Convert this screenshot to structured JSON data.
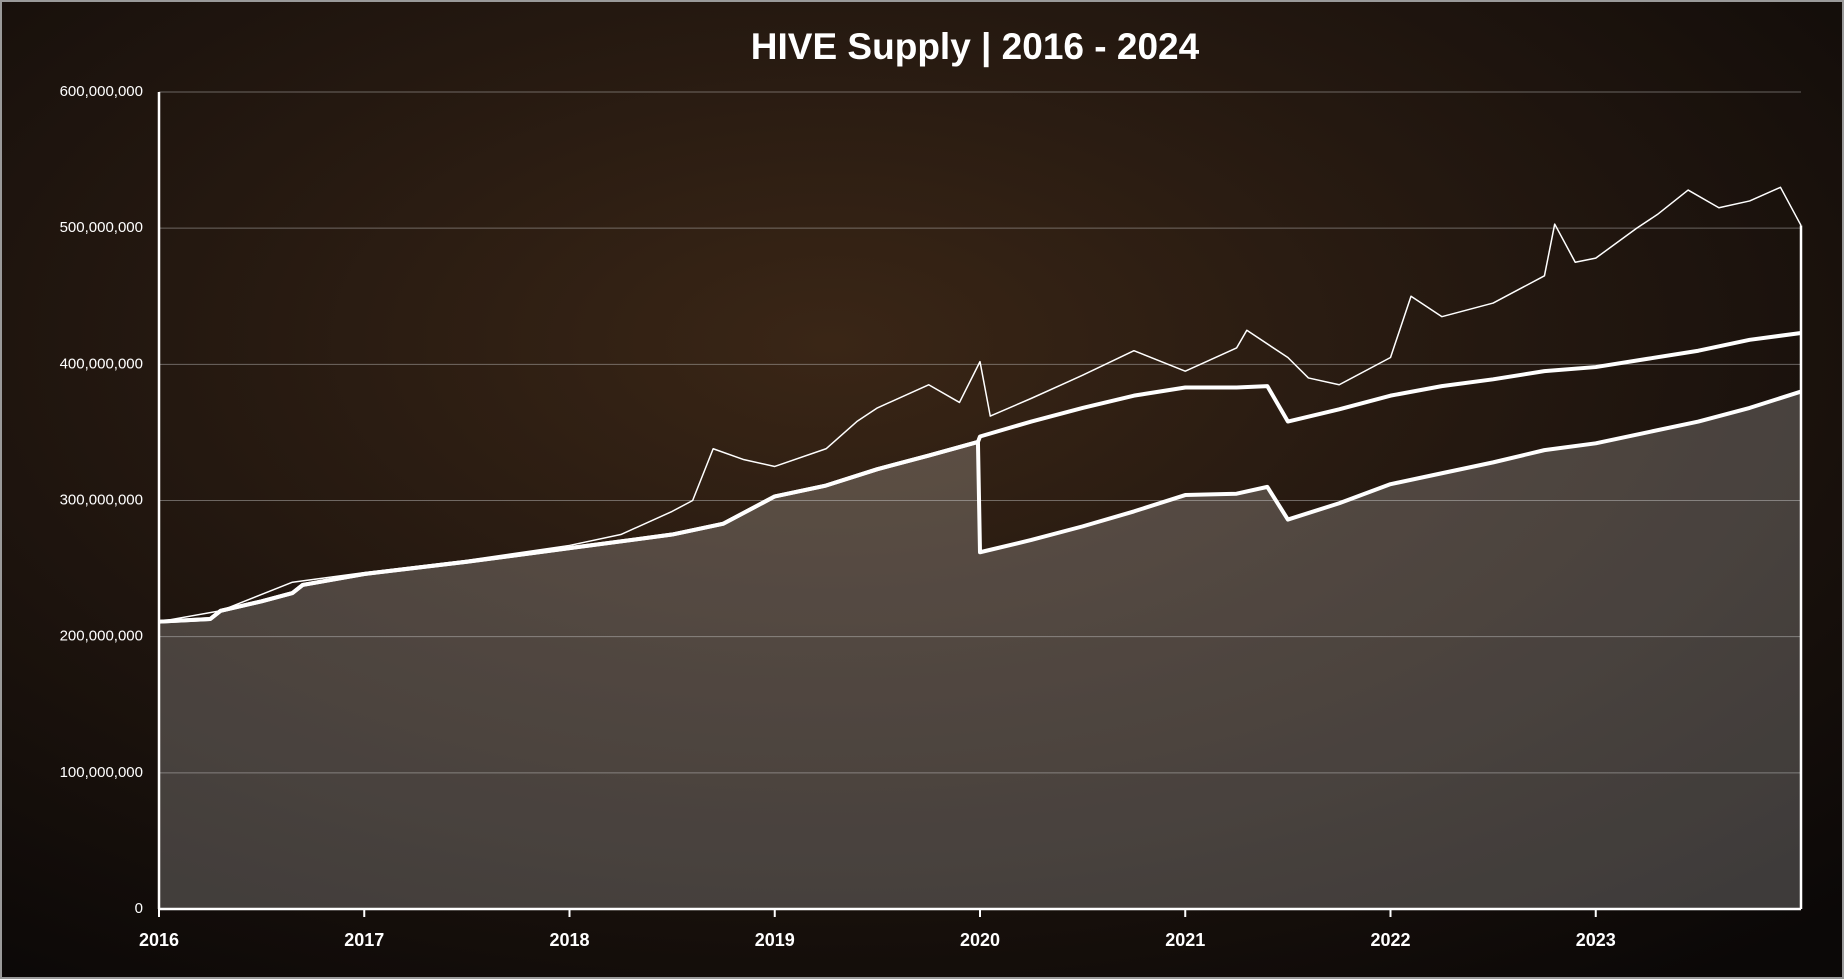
{
  "chart_data": {
    "type": "line",
    "title": "HIVE Supply | 2016 - 2024",
    "xlim": [
      2016,
      2024
    ],
    "xticks": [
      2016,
      2017,
      2018,
      2019,
      2020,
      2021,
      2022,
      2023
    ],
    "ylim": [
      0,
      600000000
    ],
    "yticks": [
      0,
      {
        "value": 100000000,
        "label": "100,000,000"
      },
      {
        "value": 200000000,
        "label": "200,000,000"
      },
      {
        "value": 300000000,
        "label": "300,000,000"
      },
      {
        "value": 400000000,
        "label": "400,000,000"
      },
      {
        "value": 500000000,
        "label": "500,000,000"
      },
      {
        "value": 600000000,
        "label": "600,000,000"
      }
    ],
    "grid": true,
    "series": [
      {
        "color": "#ffffff",
        "line_width": 4,
        "x": [
          2016,
          2016.25,
          2016.3,
          2016.5,
          2016.65,
          2016.7,
          2017,
          2017.5,
          2018,
          2018.5,
          2018.75,
          2019,
          2019.25,
          2019.5,
          2019.75,
          2019.99,
          2020,
          2020.25,
          2020.5,
          2020.75,
          2021,
          2021.25,
          2021.4,
          2021.5,
          2021.75,
          2022,
          2022.25,
          2022.5,
          2022.75,
          2023,
          2023.25,
          2023.5,
          2023.75,
          2024
        ],
        "values": [
          211000000,
          213000000,
          219000000,
          226000000,
          232000000,
          238000000,
          246000000,
          255000000,
          265000000,
          275000000,
          283000000,
          303000000,
          311000000,
          323000000,
          333000000,
          343000000,
          347000000,
          358000000,
          368000000,
          377000000,
          383000000,
          383000000,
          384000000,
          358000000,
          367000000,
          377000000,
          384000000,
          389000000,
          395000000,
          398000000,
          404000000,
          410000000,
          418000000,
          423000000
        ]
      },
      {
        "color": "#ffffff",
        "line_width": 4,
        "fill_area": true,
        "fill": "rgba(235,235,235,0.22)",
        "x": [
          2016,
          2016.25,
          2016.3,
          2016.5,
          2016.65,
          2016.7,
          2017,
          2017.5,
          2018,
          2018.5,
          2018.75,
          2019,
          2019.25,
          2019.5,
          2019.75,
          2019.99,
          2020,
          2020.25,
          2020.5,
          2020.75,
          2021,
          2021.25,
          2021.4,
          2021.5,
          2021.75,
          2022,
          2022.25,
          2022.5,
          2022.75,
          2023,
          2023.25,
          2023.5,
          2023.75,
          2024
        ],
        "values": [
          211000000,
          213000000,
          219000000,
          226000000,
          232000000,
          238000000,
          246000000,
          255000000,
          265000000,
          275000000,
          283000000,
          303000000,
          311000000,
          323000000,
          333000000,
          343000000,
          262000000,
          271000000,
          281000000,
          292000000,
          304000000,
          305000000,
          310000000,
          286000000,
          298000000,
          312000000,
          320000000,
          328000000,
          337000000,
          342000000,
          350000000,
          358000000,
          368000000,
          380000000
        ]
      },
      {
        "color": "#ffffff",
        "line_width": 1.5,
        "x": [
          2016,
          2016.3,
          2016.65,
          2017,
          2017.5,
          2018,
          2018.25,
          2018.5,
          2018.6,
          2018.7,
          2018.85,
          2019,
          2019.25,
          2019.4,
          2019.5,
          2019.75,
          2019.9,
          2020,
          2020.05,
          2020.25,
          2020.5,
          2020.75,
          2021,
          2021.25,
          2021.3,
          2021.5,
          2021.6,
          2021.75,
          2022,
          2022.1,
          2022.25,
          2022.5,
          2022.75,
          2022.8,
          2022.9,
          2023,
          2023.2,
          2023.3,
          2023.45,
          2023.6,
          2023.75,
          2023.9,
          2024
        ],
        "values": [
          211000000,
          219000000,
          240000000,
          247000000,
          256000000,
          267000000,
          275000000,
          292000000,
          300000000,
          338000000,
          330000000,
          325000000,
          338000000,
          358000000,
          368000000,
          385000000,
          372000000,
          402000000,
          362000000,
          375000000,
          392000000,
          410000000,
          395000000,
          412000000,
          425000000,
          405000000,
          390000000,
          385000000,
          405000000,
          450000000,
          435000000,
          445000000,
          465000000,
          503000000,
          475000000,
          478000000,
          500000000,
          510000000,
          528000000,
          515000000,
          520000000,
          530000000,
          502000000
        ]
      }
    ]
  }
}
